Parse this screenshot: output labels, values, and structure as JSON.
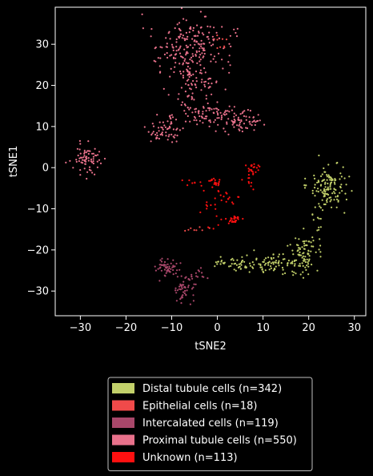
{
  "chart_data": {
    "type": "scatter",
    "title": "",
    "xlabel": "tSNE2",
    "ylabel": "tSNE1",
    "xlim": [
      -35.5,
      32.5
    ],
    "ylim": [
      -36,
      39
    ],
    "xticks": [
      -30,
      -20,
      -10,
      0,
      10,
      20,
      30
    ],
    "xtick_labels": [
      "−30",
      "−20",
      "−10",
      "0",
      "10",
      "20",
      "30"
    ],
    "yticks": [
      -30,
      -20,
      -10,
      0,
      10,
      20,
      30
    ],
    "ytick_labels": [
      "−30",
      "−20",
      "−10",
      "0",
      "10",
      "20",
      "30"
    ],
    "grid": false,
    "background": "#000000",
    "legend_placement": "below plot, centered",
    "series": [
      {
        "name": "Distal tubule cells (n=342)",
        "count": 342,
        "color": "#c2d06a",
        "clusters": [
          {
            "cx": 24.5,
            "cy": -4.5,
            "sx": 1.9,
            "sy": 2.6,
            "n": 130
          },
          {
            "cx": 18.8,
            "cy": -21.5,
            "sx": 1.6,
            "sy": 2.3,
            "n": 85
          },
          {
            "cx": 12.0,
            "cy": -23.5,
            "sx": 3.0,
            "sy": 1.2,
            "n": 70
          },
          {
            "cx": 4.0,
            "cy": -23.2,
            "sx": 2.6,
            "sy": 0.9,
            "n": 45
          },
          {
            "cx": 21.5,
            "cy": -13.0,
            "sx": 0.8,
            "sy": 2.5,
            "n": 12
          }
        ]
      },
      {
        "name": "Epithelial cells (n=18)",
        "count": 18,
        "color": "#f04a4a",
        "clusters": [
          {
            "cx": -5.0,
            "cy": -15.5,
            "sx": 1.8,
            "sy": 0.8,
            "n": 8
          },
          {
            "cx": 1.0,
            "cy": 30.5,
            "sx": 1.0,
            "sy": 1.2,
            "n": 10
          }
        ]
      },
      {
        "name": "Intercalated cells (n=119)",
        "count": 119,
        "color": "#a8476a",
        "clusters": [
          {
            "cx": -11.0,
            "cy": -24.0,
            "sx": 1.3,
            "sy": 1.3,
            "n": 55
          },
          {
            "cx": -7.0,
            "cy": -29.5,
            "sx": 1.1,
            "sy": 1.8,
            "n": 50
          },
          {
            "cx": -4.0,
            "cy": -26.5,
            "sx": 1.0,
            "sy": 1.0,
            "n": 14
          }
        ]
      },
      {
        "name": "Proximal tubule cells (n=550)",
        "count": 550,
        "color": "#e8718b",
        "clusters": [
          {
            "cx": -6.0,
            "cy": 29.0,
            "sx": 4.0,
            "sy": 3.5,
            "n": 210
          },
          {
            "cx": -5.0,
            "cy": 20.0,
            "sx": 2.5,
            "sy": 3.0,
            "n": 70
          },
          {
            "cx": -2.0,
            "cy": 12.5,
            "sx": 2.5,
            "sy": 1.5,
            "n": 70
          },
          {
            "cx": 5.0,
            "cy": 11.5,
            "sx": 2.3,
            "sy": 1.6,
            "n": 70
          },
          {
            "cx": -11.5,
            "cy": 9.0,
            "sx": 1.9,
            "sy": 1.9,
            "n": 60
          },
          {
            "cx": -28.5,
            "cy": 2.0,
            "sx": 1.5,
            "sy": 2.0,
            "n": 70
          }
        ]
      },
      {
        "name": "Unknown (n=113)",
        "count": 113,
        "color": "#ff1010",
        "clusters": [
          {
            "cx": 3.5,
            "cy": -12.5,
            "sx": 0.7,
            "sy": 0.6,
            "n": 25
          },
          {
            "cx": -0.5,
            "cy": -3.5,
            "sx": 0.6,
            "sy": 0.6,
            "n": 20
          },
          {
            "cx": 8.0,
            "cy": 0.0,
            "sx": 0.8,
            "sy": 0.7,
            "n": 20
          },
          {
            "cx": 7.5,
            "cy": -3.5,
            "sx": 1.0,
            "sy": 1.0,
            "n": 10
          },
          {
            "cx": 2.0,
            "cy": -7.0,
            "sx": 1.5,
            "sy": 1.0,
            "n": 15
          },
          {
            "cx": -6.0,
            "cy": -4.0,
            "sx": 1.0,
            "sy": 1.0,
            "n": 8
          },
          {
            "cx": -1.5,
            "cy": -10.5,
            "sx": 1.5,
            "sy": 2.5,
            "n": 15
          }
        ]
      }
    ]
  }
}
